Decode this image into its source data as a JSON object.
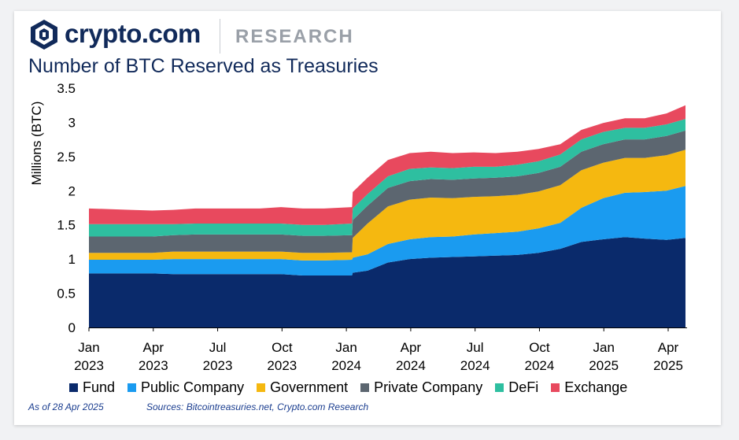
{
  "brand": {
    "logo_text": "crypto.com",
    "research_text": "RESEARCH",
    "navy": "#112a5a"
  },
  "chart_data": {
    "type": "area",
    "stacked": true,
    "title": "Number of BTC Reserved as Treasuries",
    "xlabel": "",
    "ylabel": "Millions (BTC)",
    "ylim": [
      0,
      3.5
    ],
    "yticks": [
      "0",
      "0.5",
      "1",
      "1.5",
      "2",
      "2.5",
      "3",
      "3.5"
    ],
    "xticks": [
      {
        "month": "Jan",
        "year": "2023"
      },
      {
        "month": "Apr",
        "year": "2023"
      },
      {
        "month": "Jul",
        "year": "2023"
      },
      {
        "month": "Oct",
        "year": "2023"
      },
      {
        "month": "Jan",
        "year": "2024"
      },
      {
        "month": "Apr",
        "year": "2024"
      },
      {
        "month": "Jul",
        "year": "2024"
      },
      {
        "month": "Oct",
        "year": "2024"
      },
      {
        "month": "Jan",
        "year": "2025"
      },
      {
        "month": "Apr",
        "year": "2025"
      }
    ],
    "x": [
      "2023-01",
      "2023-02",
      "2023-03",
      "2023-04",
      "2023-05",
      "2023-06",
      "2023-07",
      "2023-08",
      "2023-09",
      "2023-10",
      "2023-11",
      "2023-12",
      "2024-01-10",
      "2024-01-11",
      "2024-02",
      "2024-03",
      "2024-04",
      "2024-05",
      "2024-06",
      "2024-07",
      "2024-08",
      "2024-09",
      "2024-10",
      "2024-11",
      "2024-12",
      "2025-01",
      "2025-02",
      "2025-03",
      "2025-04-01",
      "2025-04-28"
    ],
    "series": [
      {
        "name": "Fund",
        "color": "#0a2a6b",
        "values": [
          0.79,
          0.79,
          0.79,
          0.79,
          0.78,
          0.78,
          0.78,
          0.78,
          0.78,
          0.78,
          0.76,
          0.76,
          0.76,
          0.8,
          0.83,
          0.95,
          1.0,
          1.02,
          1.03,
          1.04,
          1.05,
          1.06,
          1.09,
          1.15,
          1.25,
          1.29,
          1.32,
          1.3,
          1.28,
          1.31
        ]
      },
      {
        "name": "Public Company",
        "color": "#1a9bf0",
        "values": [
          0.2,
          0.2,
          0.2,
          0.2,
          0.22,
          0.22,
          0.22,
          0.22,
          0.22,
          0.22,
          0.22,
          0.22,
          0.23,
          0.22,
          0.24,
          0.27,
          0.29,
          0.3,
          0.3,
          0.32,
          0.33,
          0.34,
          0.36,
          0.38,
          0.5,
          0.6,
          0.65,
          0.68,
          0.72,
          0.76
        ]
      },
      {
        "name": "Government",
        "color": "#f5b810",
        "values": [
          0.1,
          0.1,
          0.1,
          0.1,
          0.11,
          0.11,
          0.11,
          0.11,
          0.11,
          0.11,
          0.11,
          0.11,
          0.11,
          0.29,
          0.45,
          0.55,
          0.58,
          0.58,
          0.56,
          0.55,
          0.54,
          0.54,
          0.54,
          0.55,
          0.55,
          0.52,
          0.51,
          0.5,
          0.52,
          0.53
        ]
      },
      {
        "name": "Private Company",
        "color": "#5c6670",
        "values": [
          0.24,
          0.24,
          0.24,
          0.24,
          0.24,
          0.25,
          0.25,
          0.25,
          0.25,
          0.25,
          0.25,
          0.25,
          0.25,
          0.26,
          0.26,
          0.27,
          0.27,
          0.27,
          0.27,
          0.27,
          0.27,
          0.27,
          0.27,
          0.27,
          0.27,
          0.27,
          0.27,
          0.27,
          0.28,
          0.28
        ]
      },
      {
        "name": "DeFi",
        "color": "#2ebfa0",
        "values": [
          0.18,
          0.18,
          0.18,
          0.18,
          0.16,
          0.16,
          0.16,
          0.16,
          0.16,
          0.16,
          0.16,
          0.16,
          0.17,
          0.17,
          0.17,
          0.17,
          0.18,
          0.17,
          0.17,
          0.17,
          0.16,
          0.17,
          0.17,
          0.18,
          0.18,
          0.18,
          0.17,
          0.17,
          0.17,
          0.17
        ]
      },
      {
        "name": "Exchange",
        "color": "#e8495e",
        "values": [
          0.23,
          0.22,
          0.21,
          0.2,
          0.21,
          0.22,
          0.22,
          0.22,
          0.22,
          0.24,
          0.24,
          0.24,
          0.24,
          0.24,
          0.24,
          0.24,
          0.23,
          0.23,
          0.22,
          0.21,
          0.2,
          0.19,
          0.18,
          0.15,
          0.14,
          0.13,
          0.14,
          0.14,
          0.16,
          0.2
        ]
      }
    ]
  },
  "footnotes": {
    "date": "As of 28 Apr 2025",
    "sources": "Sources: Bitcointreasuries.net, Crypto.com Research"
  }
}
